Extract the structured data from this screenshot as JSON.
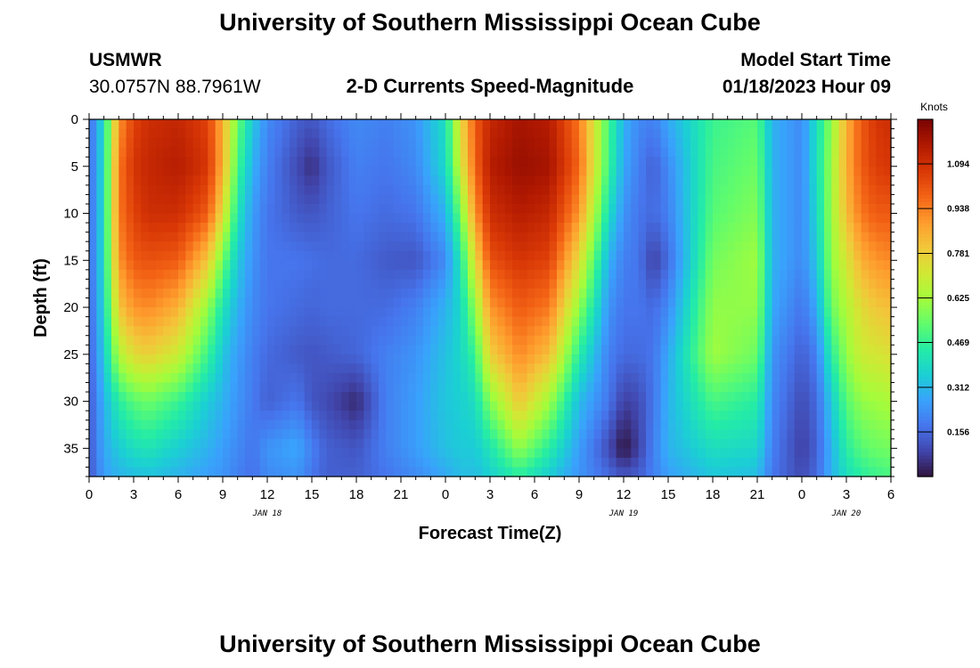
{
  "header": {
    "title": "University of Southern Mississippi Ocean Cube",
    "station": "USMWR",
    "coordinates": "30.0757N  88.7961W",
    "plot_title": "2-D Currents Speed-Magnitude",
    "start_label": "Model Start Time",
    "start_value": "01/18/2023 Hour 09"
  },
  "footer": {
    "title": "University of Southern Mississippi Ocean Cube"
  },
  "chart_data": {
    "type": "heatmap",
    "title": "2-D Currents Speed-Magnitude",
    "xlabel": "Forecast Time(Z)",
    "ylabel": "Depth (ft)",
    "x_ticks": [
      "0",
      "3",
      "6",
      "9",
      "12",
      "15",
      "18",
      "21",
      "0",
      "3",
      "6",
      "9",
      "12",
      "15",
      "18",
      "21",
      "0",
      "3",
      "6"
    ],
    "x_range_hours": [
      0,
      54
    ],
    "date_labels": [
      {
        "label": "JAN 18",
        "hour": 12
      },
      {
        "label": "JAN 19",
        "hour": 36
      },
      {
        "label": "JAN 20",
        "hour": 51
      }
    ],
    "y_ticks": [
      0,
      5,
      10,
      15,
      20,
      25,
      30,
      35
    ],
    "y_range": [
      0,
      38
    ],
    "y_inverted": true,
    "colorbar": {
      "label": "Knots",
      "ticks": [
        "1.094",
        "0.938",
        "0.781",
        "0.625",
        "0.469",
        "0.312",
        "0.156"
      ],
      "min": 0,
      "max": 1.25
    },
    "colormap": [
      "#30123b",
      "#4145ab",
      "#4675ed",
      "#39a2fc",
      "#1bcfd4",
      "#24eca6",
      "#61fc6c",
      "#a4fc3b",
      "#d1e834",
      "#f3c63a",
      "#fe9b2d",
      "#f36315",
      "#d93806",
      "#b11901",
      "#7a0402"
    ],
    "field": {
      "times": [
        0,
        1,
        2,
        3,
        4,
        6,
        8,
        9,
        10,
        11,
        12,
        14,
        15,
        16,
        18,
        20,
        22,
        24,
        25,
        26,
        27,
        29,
        31,
        33,
        35,
        36,
        37,
        38,
        39,
        42,
        45,
        46,
        48,
        49,
        50,
        51,
        52,
        53,
        54
      ],
      "depths": [
        0,
        5,
        10,
        15,
        20,
        25,
        30,
        35,
        38
      ],
      "speed_knots": [
        [
          0.15,
          0.15,
          0.15,
          0.15,
          0.14,
          0.13,
          0.12,
          0.12,
          0.12
        ],
        [
          0.4,
          0.4,
          0.4,
          0.4,
          0.38,
          0.35,
          0.3,
          0.28,
          0.26
        ],
        [
          0.9,
          0.95,
          0.95,
          0.9,
          0.8,
          0.65,
          0.45,
          0.35,
          0.3
        ],
        [
          1.05,
          1.08,
          1.05,
          1.0,
          0.9,
          0.75,
          0.52,
          0.4,
          0.32
        ],
        [
          1.1,
          1.12,
          1.1,
          1.02,
          0.92,
          0.78,
          0.55,
          0.42,
          0.33
        ],
        [
          1.12,
          1.15,
          1.1,
          1.0,
          0.85,
          0.7,
          0.48,
          0.36,
          0.3
        ],
        [
          1.05,
          1.08,
          1.0,
          0.8,
          0.6,
          0.48,
          0.35,
          0.3,
          0.26
        ],
        [
          0.85,
          0.85,
          0.75,
          0.55,
          0.42,
          0.34,
          0.3,
          0.26,
          0.24
        ],
        [
          0.55,
          0.5,
          0.42,
          0.35,
          0.3,
          0.26,
          0.24,
          0.22,
          0.2
        ],
        [
          0.35,
          0.3,
          0.26,
          0.24,
          0.22,
          0.2,
          0.19,
          0.18,
          0.17
        ],
        [
          0.22,
          0.2,
          0.18,
          0.18,
          0.18,
          0.16,
          0.14,
          0.24,
          0.22
        ],
        [
          0.14,
          0.1,
          0.13,
          0.18,
          0.16,
          0.13,
          0.18,
          0.28,
          0.24
        ],
        [
          0.12,
          0.05,
          0.12,
          0.17,
          0.15,
          0.12,
          0.12,
          0.2,
          0.18
        ],
        [
          0.16,
          0.12,
          0.14,
          0.16,
          0.16,
          0.13,
          0.1,
          0.14,
          0.14
        ],
        [
          0.22,
          0.2,
          0.18,
          0.16,
          0.16,
          0.15,
          0.04,
          0.12,
          0.14
        ],
        [
          0.2,
          0.18,
          0.16,
          0.13,
          0.16,
          0.2,
          0.2,
          0.2,
          0.18
        ],
        [
          0.24,
          0.22,
          0.18,
          0.12,
          0.2,
          0.24,
          0.26,
          0.26,
          0.22
        ],
        [
          0.4,
          0.38,
          0.3,
          0.22,
          0.3,
          0.33,
          0.34,
          0.33,
          0.28
        ],
        [
          0.75,
          0.7,
          0.55,
          0.42,
          0.38,
          0.38,
          0.36,
          0.35,
          0.32
        ],
        [
          1.0,
          0.98,
          0.9,
          0.75,
          0.6,
          0.48,
          0.4,
          0.35,
          0.32
        ],
        [
          1.12,
          1.15,
          1.1,
          1.02,
          0.9,
          0.78,
          0.58,
          0.42,
          0.36
        ],
        [
          1.18,
          1.2,
          1.15,
          1.08,
          1.0,
          0.92,
          0.8,
          0.6,
          0.45
        ],
        [
          1.15,
          1.18,
          1.12,
          1.05,
          0.95,
          0.82,
          0.62,
          0.45,
          0.35
        ],
        [
          0.95,
          0.98,
          0.9,
          0.75,
          0.6,
          0.45,
          0.32,
          0.26,
          0.24
        ],
        [
          0.5,
          0.48,
          0.4,
          0.3,
          0.24,
          0.2,
          0.18,
          0.1,
          0.16
        ],
        [
          0.3,
          0.28,
          0.24,
          0.2,
          0.18,
          0.16,
          0.08,
          0.0,
          0.12
        ],
        [
          0.22,
          0.2,
          0.18,
          0.18,
          0.18,
          0.16,
          0.1,
          0.08,
          0.14
        ],
        [
          0.2,
          0.14,
          0.16,
          0.08,
          0.16,
          0.18,
          0.18,
          0.2,
          0.2
        ],
        [
          0.28,
          0.22,
          0.2,
          0.16,
          0.22,
          0.28,
          0.3,
          0.3,
          0.26
        ],
        [
          0.48,
          0.5,
          0.52,
          0.56,
          0.6,
          0.62,
          0.5,
          0.4,
          0.34
        ],
        [
          0.52,
          0.55,
          0.58,
          0.62,
          0.6,
          0.55,
          0.45,
          0.38,
          0.32
        ],
        [
          0.3,
          0.3,
          0.3,
          0.3,
          0.28,
          0.24,
          0.22,
          0.2,
          0.18
        ],
        [
          0.22,
          0.22,
          0.22,
          0.22,
          0.18,
          0.14,
          0.1,
          0.08,
          0.1
        ],
        [
          0.4,
          0.4,
          0.38,
          0.34,
          0.28,
          0.2,
          0.16,
          0.14,
          0.16
        ],
        [
          0.6,
          0.62,
          0.62,
          0.6,
          0.55,
          0.45,
          0.35,
          0.3,
          0.3
        ],
        [
          0.85,
          0.85,
          0.82,
          0.72,
          0.65,
          0.6,
          0.52,
          0.45,
          0.4
        ],
        [
          1.0,
          1.0,
          0.95,
          0.85,
          0.75,
          0.7,
          0.6,
          0.52,
          0.45
        ],
        [
          1.08,
          1.06,
          1.0,
          0.9,
          0.8,
          0.72,
          0.62,
          0.55,
          0.48
        ],
        [
          1.1,
          1.08,
          1.0,
          0.92,
          0.82,
          0.74,
          0.64,
          0.56,
          0.5
        ]
      ]
    }
  }
}
